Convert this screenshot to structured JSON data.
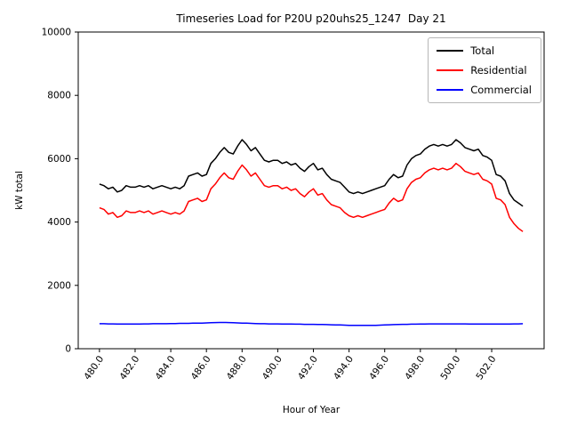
{
  "chart_data": {
    "type": "line",
    "title": "Timeseries Load for P20U p20uhs25_1247  Day 21",
    "xlabel": "Hour of Year",
    "ylabel": "kW total",
    "grid": false,
    "legend_position": "upper right",
    "xlim": [
      478.81,
      504.94
    ],
    "ylim": [
      0,
      10000
    ],
    "x_ticks": [
      480,
      482,
      484,
      486,
      488,
      490,
      492,
      494,
      496,
      498,
      500,
      502
    ],
    "x_tick_labels": [
      "480.0",
      "482.0",
      "484.0",
      "486.0",
      "488.0",
      "490.0",
      "492.0",
      "494.0",
      "496.0",
      "498.0",
      "500.0",
      "502.0"
    ],
    "y_ticks": [
      0,
      2000,
      4000,
      6000,
      8000,
      10000
    ],
    "y_tick_labels": [
      "0",
      "2000",
      "4000",
      "6000",
      "8000",
      "10000"
    ],
    "x_start": 480.0,
    "x_step": 0.25,
    "series": [
      {
        "name": "Total",
        "color": "#000000",
        "values": [
          5200,
          5150,
          5050,
          5100,
          4950,
          5000,
          5150,
          5100,
          5100,
          5150,
          5100,
          5150,
          5050,
          5100,
          5150,
          5100,
          5050,
          5100,
          5050,
          5150,
          5450,
          5500,
          5550,
          5450,
          5500,
          5850,
          6000,
          6200,
          6350,
          6200,
          6150,
          6400,
          6600,
          6450,
          6250,
          6350,
          6150,
          5950,
          5900,
          5950,
          5950,
          5850,
          5900,
          5800,
          5850,
          5700,
          5600,
          5750,
          5850,
          5650,
          5700,
          5500,
          5350,
          5300,
          5250,
          5100,
          4950,
          4900,
          4950,
          4900,
          4950,
          5000,
          5050,
          5100,
          5150,
          5350,
          5500,
          5400,
          5450,
          5800,
          6000,
          6100,
          6150,
          6300,
          6400,
          6450,
          6400,
          6450,
          6400,
          6450,
          6600,
          6500,
          6350,
          6300,
          6250,
          6300,
          6100,
          6050,
          5950,
          5500,
          5450,
          5300,
          4900,
          4700,
          4600,
          4500
        ]
      },
      {
        "name": "Residential",
        "color": "#ff0000",
        "values": [
          4450,
          4400,
          4250,
          4300,
          4150,
          4200,
          4350,
          4300,
          4300,
          4350,
          4300,
          4350,
          4250,
          4300,
          4350,
          4300,
          4250,
          4300,
          4250,
          4350,
          4650,
          4700,
          4750,
          4650,
          4700,
          5050,
          5200,
          5400,
          5550,
          5400,
          5350,
          5600,
          5800,
          5650,
          5450,
          5550,
          5350,
          5150,
          5100,
          5150,
          5150,
          5050,
          5100,
          5000,
          5050,
          4900,
          4800,
          4950,
          5050,
          4850,
          4900,
          4700,
          4550,
          4500,
          4450,
          4300,
          4200,
          4150,
          4200,
          4150,
          4200,
          4250,
          4300,
          4350,
          4400,
          4600,
          4750,
          4650,
          4700,
          5050,
          5250,
          5350,
          5400,
          5550,
          5650,
          5700,
          5650,
          5700,
          5650,
          5700,
          5850,
          5750,
          5600,
          5550,
          5500,
          5550,
          5350,
          5300,
          5200,
          4750,
          4700,
          4550,
          4150,
          3950,
          3800,
          3700
        ]
      },
      {
        "name": "Commercial",
        "color": "#0000ff",
        "values": [
          790,
          790,
          785,
          785,
          780,
          780,
          780,
          780,
          780,
          780,
          785,
          785,
          790,
          790,
          790,
          790,
          795,
          795,
          800,
          800,
          800,
          805,
          805,
          810,
          815,
          820,
          825,
          830,
          830,
          825,
          820,
          815,
          810,
          805,
          800,
          795,
          790,
          790,
          785,
          785,
          785,
          780,
          780,
          780,
          775,
          775,
          770,
          770,
          770,
          765,
          765,
          760,
          755,
          750,
          750,
          745,
          740,
          740,
          735,
          735,
          735,
          740,
          740,
          745,
          750,
          755,
          760,
          765,
          770,
          770,
          775,
          775,
          780,
          780,
          785,
          785,
          785,
          785,
          785,
          785,
          785,
          785,
          785,
          780,
          780,
          780,
          780,
          780,
          780,
          780,
          780,
          780,
          780,
          785,
          785,
          790
        ]
      }
    ]
  }
}
